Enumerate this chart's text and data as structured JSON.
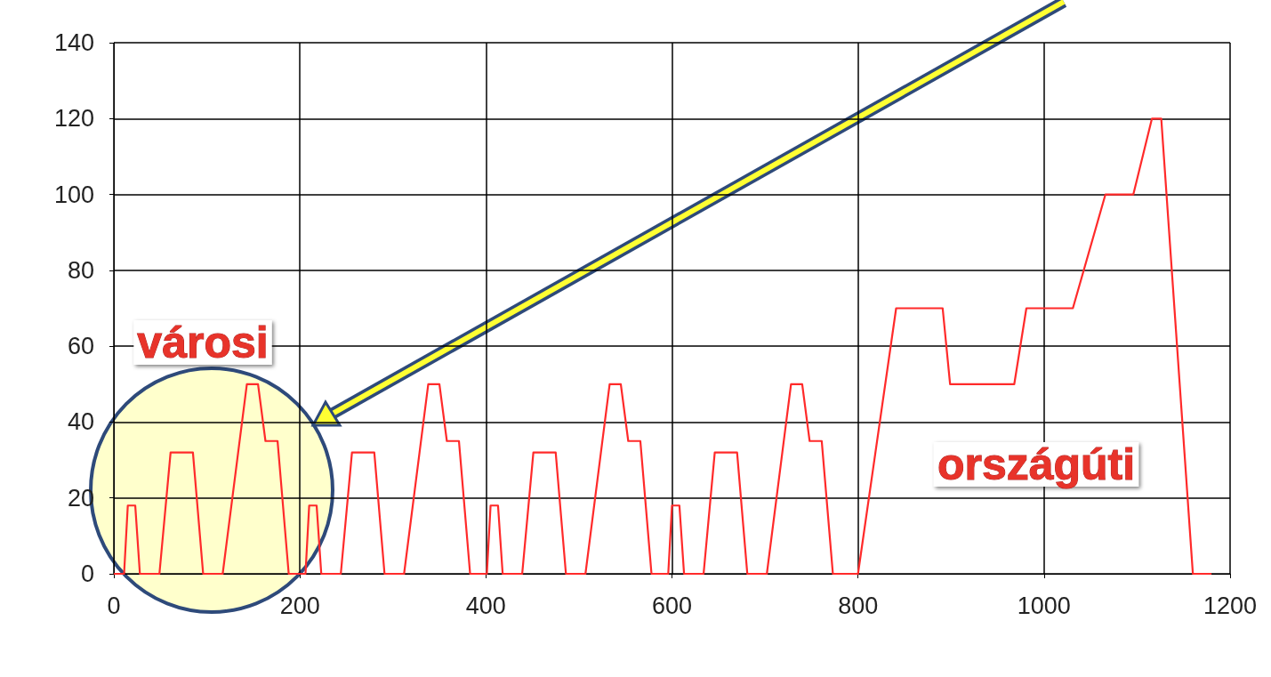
{
  "chart_data": {
    "type": "line",
    "x": [
      0,
      11,
      15,
      23,
      28,
      49,
      61,
      85,
      96,
      117,
      143,
      155,
      163,
      176,
      188,
      206,
      210,
      218,
      223,
      244,
      256,
      280,
      291,
      312,
      338,
      350,
      358,
      371,
      383,
      401,
      405,
      413,
      418,
      439,
      451,
      475,
      486,
      507,
      533,
      545,
      553,
      566,
      578,
      596,
      600,
      608,
      613,
      634,
      646,
      670,
      681,
      702,
      728,
      740,
      748,
      761,
      773,
      800,
      841,
      891,
      899,
      968,
      981,
      1031,
      1066,
      1096,
      1116,
      1126,
      1160,
      1180
    ],
    "series": [
      {
        "color": "#ff2a2a",
        "values": [
          0,
          0,
          18,
          18,
          0,
          0,
          32,
          32,
          0,
          0,
          50,
          50,
          35,
          35,
          0,
          0,
          18,
          18,
          0,
          0,
          32,
          32,
          0,
          0,
          50,
          50,
          35,
          35,
          0,
          0,
          18,
          18,
          0,
          0,
          32,
          32,
          0,
          0,
          50,
          50,
          35,
          35,
          0,
          0,
          18,
          18,
          0,
          0,
          32,
          32,
          0,
          0,
          50,
          50,
          35,
          35,
          0,
          0,
          70,
          70,
          50,
          50,
          70,
          70,
          100,
          100,
          120,
          120,
          0,
          0
        ]
      }
    ],
    "xlim": [
      0,
      1200
    ],
    "xticks": [
      0,
      200,
      400,
      600,
      800,
      1000,
      1200
    ],
    "ylim": [
      0,
      140
    ],
    "yticks": [
      0,
      20,
      40,
      60,
      80,
      100,
      120,
      140
    ],
    "grid": true,
    "marker": "none",
    "line_style": "solid",
    "annotations": [
      "városi",
      "országúti"
    ]
  }
}
